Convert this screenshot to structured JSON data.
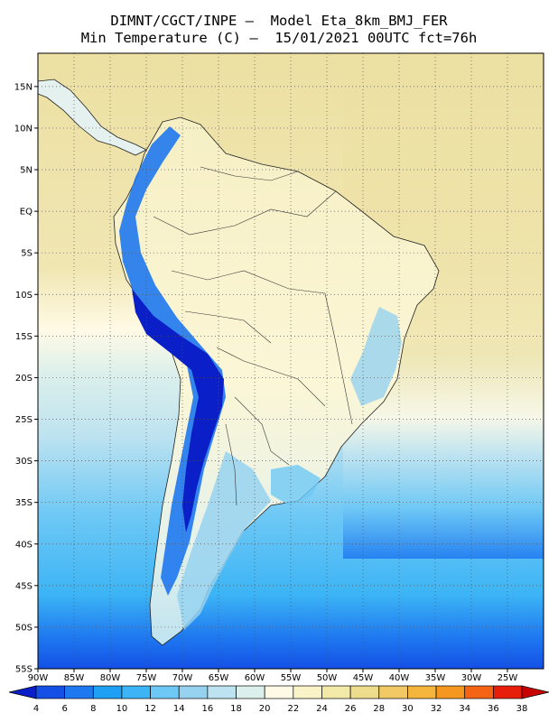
{
  "title": {
    "line1": "DIMNT/CGCT/INPE –  Model Eta_8km_BMJ_FER",
    "line2": "Min Temperature (C) –  15/01/2021 00UTC fct=76h"
  },
  "map": {
    "lon_range": [
      -90,
      -20
    ],
    "lat_range": [
      -55,
      19
    ],
    "lat_labels": [
      "15N",
      "10N",
      "5N",
      "EQ",
      "5S",
      "10S",
      "15S",
      "20S",
      "25S",
      "30S",
      "35S",
      "40S",
      "45S",
      "50S",
      "55S"
    ],
    "lon_labels": [
      "90W",
      "85W",
      "80W",
      "75W",
      "70W",
      "65W",
      "60W",
      "55W",
      "50W",
      "45W",
      "40W",
      "35W",
      "30W",
      "25W"
    ],
    "grid": "dotted",
    "field": "minimum temperature",
    "ocean_color": "#efe3a8",
    "andes_color": "#0a1fc8"
  },
  "colorbar": {
    "ticks": [
      "4",
      "6",
      "8",
      "10",
      "12",
      "14",
      "16",
      "18",
      "20",
      "22",
      "24",
      "26",
      "28",
      "30",
      "32",
      "34",
      "36",
      "38"
    ],
    "colors": [
      "#0a1fc8",
      "#1450e6",
      "#1e78f0",
      "#1ea0f5",
      "#3cb4f5",
      "#6ec8f5",
      "#96d2f0",
      "#bee3f0",
      "#dcf0eb",
      "#fffae6",
      "#fbf3c8",
      "#f2e8a8",
      "#ecdc8c",
      "#f0c864",
      "#f5b43c",
      "#f5961e",
      "#f56414",
      "#e61e0a",
      "#c80000"
    ]
  }
}
